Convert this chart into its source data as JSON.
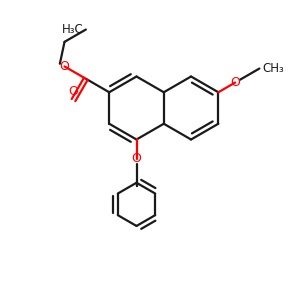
{
  "bg_color": "#FFFFFF",
  "bond_color": "#1a1a1a",
  "oxygen_color": "#FF0000",
  "lw": 1.6,
  "figsize": [
    3.0,
    3.0
  ],
  "dpi": 100,
  "xlim": [
    0,
    10
  ],
  "ylim": [
    0,
    10
  ]
}
